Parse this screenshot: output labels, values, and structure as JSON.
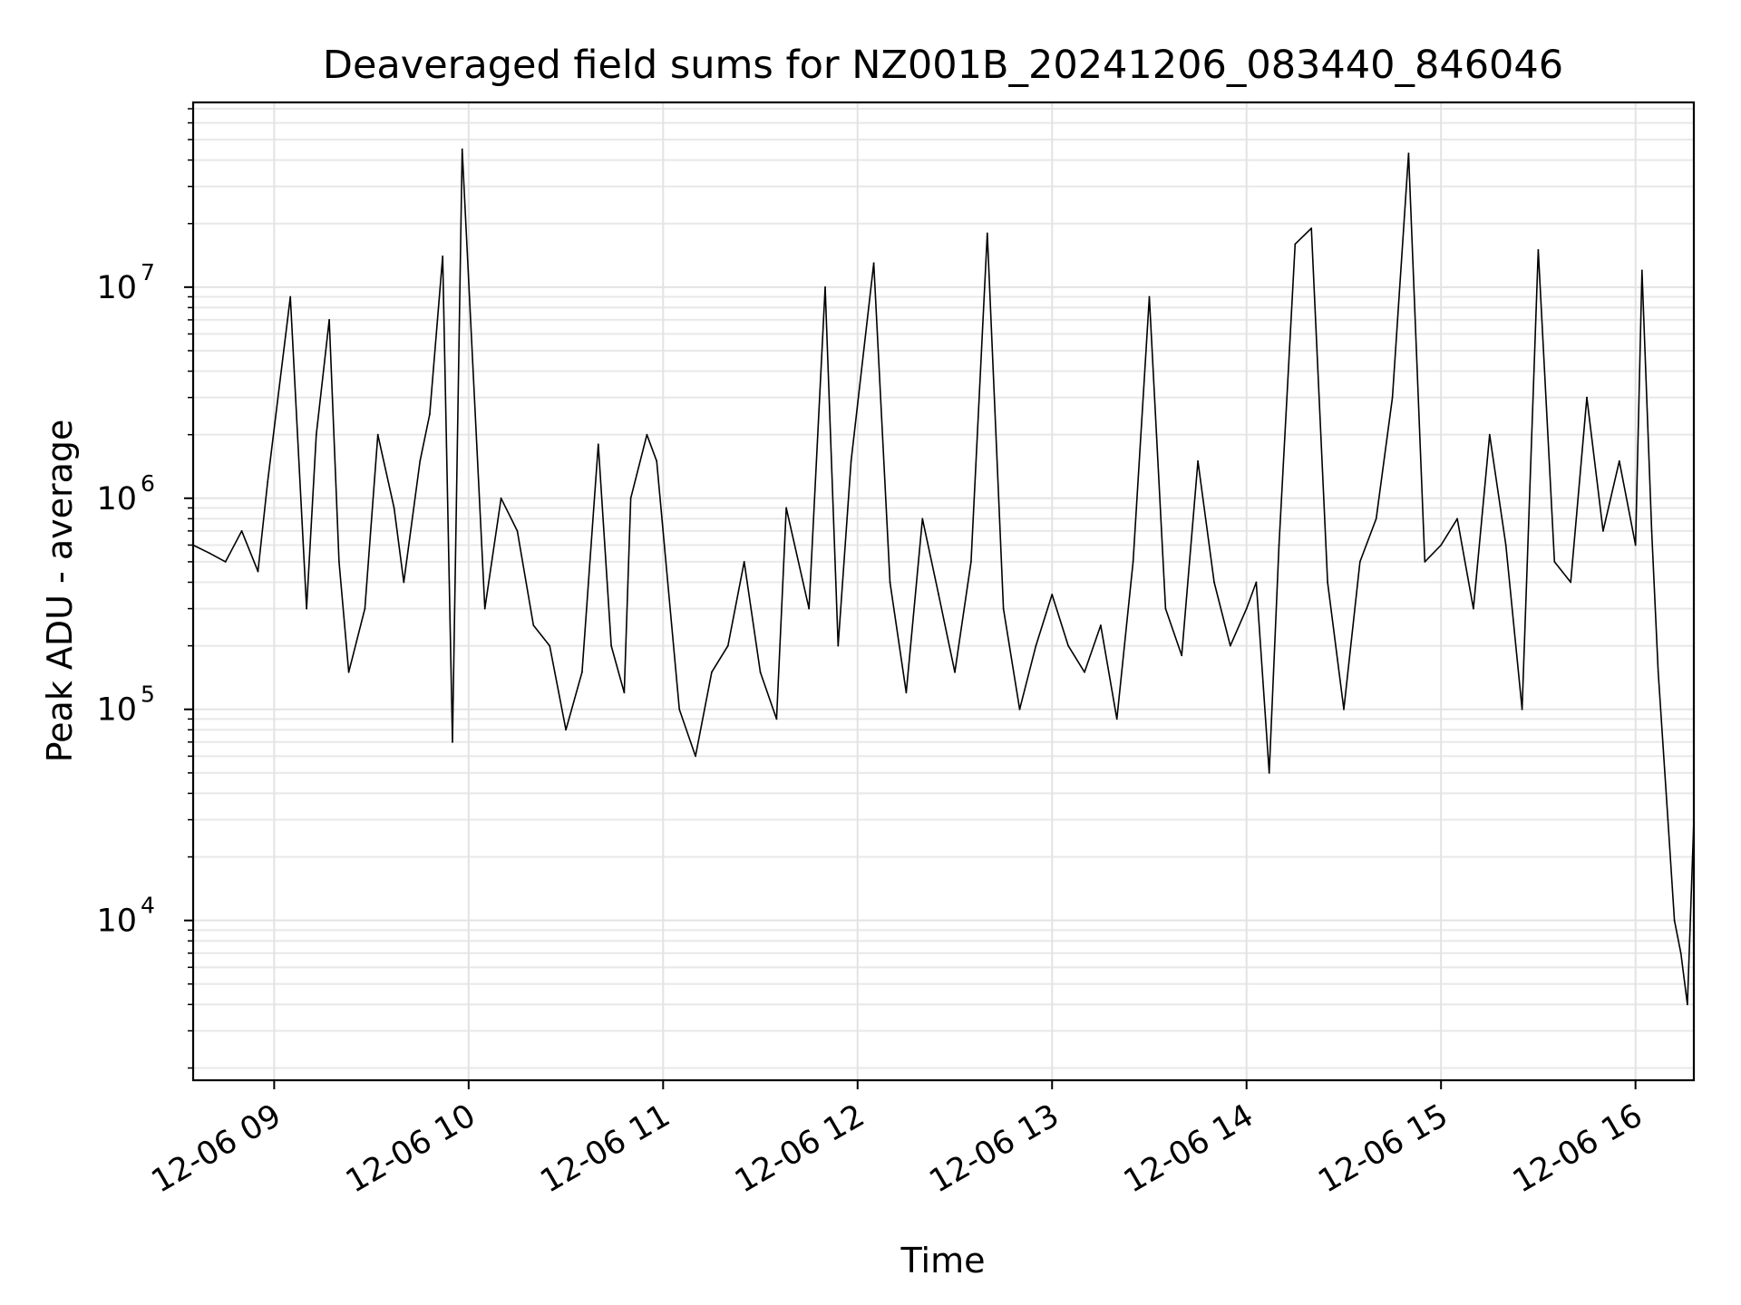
{
  "chart_data": {
    "type": "line",
    "title": "Deaveraged field sums for NZ001B_20241206_083440_846046",
    "xlabel": "Time",
    "ylabel": "Peak ADU - average",
    "x_scale": "time",
    "y_scale": "log",
    "xlim": [
      "12-06 08:35",
      "12-06 16:18"
    ],
    "ylim": [
      1750.0,
      75000000.0
    ],
    "grid": true,
    "grid_minor": true,
    "legend": "none",
    "line_color": "#000000",
    "x_tick_labels": [
      "12-06 09",
      "12-06 10",
      "12-06 11",
      "12-06 12",
      "12-06 13",
      "12-06 14",
      "12-06 15",
      "12-06 16"
    ],
    "x_tick_values": [
      "12-06 09:00",
      "12-06 10:00",
      "12-06 11:00",
      "12-06 12:00",
      "12-06 13:00",
      "12-06 14:00",
      "12-06 15:00",
      "12-06 16:00"
    ],
    "y_tick_labels": [
      {
        "base": "10",
        "exp": "4",
        "value": 10000.0
      },
      {
        "base": "10",
        "exp": "5",
        "value": 100000.0
      },
      {
        "base": "10",
        "exp": "6",
        "value": 1000000.0
      },
      {
        "base": "10",
        "exp": "7",
        "value": 10000000.0
      }
    ],
    "series": [
      {
        "x": [
          "12-06 08:35",
          "12-06 08:40",
          "12-06 08:45",
          "12-06 08:50",
          "12-06 08:55",
          "12-06 08:58",
          "12-06 09:05",
          "12-06 09:10",
          "12-06 09:13",
          "12-06 09:17",
          "12-06 09:20",
          "12-06 09:23",
          "12-06 09:28",
          "12-06 09:32",
          "12-06 09:37",
          "12-06 09:40",
          "12-06 09:45",
          "12-06 09:48",
          "12-06 09:52",
          "12-06 09:55",
          "12-06 09:58",
          "12-06 10:05",
          "12-06 10:10",
          "12-06 10:15",
          "12-06 10:20",
          "12-06 10:25",
          "12-06 10:30",
          "12-06 10:35",
          "12-06 10:40",
          "12-06 10:44",
          "12-06 10:48",
          "12-06 10:50",
          "12-06 10:55",
          "12-06 10:58",
          "12-06 11:05",
          "12-06 11:10",
          "12-06 11:15",
          "12-06 11:20",
          "12-06 11:25",
          "12-06 11:30",
          "12-06 11:35",
          "12-06 11:38",
          "12-06 11:45",
          "12-06 11:50",
          "12-06 11:54",
          "12-06 11:58",
          "12-06 12:05",
          "12-06 12:10",
          "12-06 12:15",
          "12-06 12:20",
          "12-06 12:25",
          "12-06 12:30",
          "12-06 12:35",
          "12-06 12:40",
          "12-06 12:45",
          "12-06 12:50",
          "12-06 12:55",
          "12-06 13:00",
          "12-06 13:05",
          "12-06 13:10",
          "12-06 13:15",
          "12-06 13:20",
          "12-06 13:25",
          "12-06 13:30",
          "12-06 13:35",
          "12-06 13:40",
          "12-06 13:45",
          "12-06 13:50",
          "12-06 13:55",
          "12-06 14:00",
          "12-06 14:03",
          "12-06 14:07",
          "12-06 14:10",
          "12-06 14:15",
          "12-06 14:20",
          "12-06 14:25",
          "12-06 14:30",
          "12-06 14:35",
          "12-06 14:40",
          "12-06 14:45",
          "12-06 14:50",
          "12-06 14:55",
          "12-06 15:00",
          "12-06 15:05",
          "12-06 15:10",
          "12-06 15:15",
          "12-06 15:20",
          "12-06 15:25",
          "12-06 15:30",
          "12-06 15:35",
          "12-06 15:40",
          "12-06 15:45",
          "12-06 15:50",
          "12-06 15:55",
          "12-06 16:00",
          "12-06 16:02",
          "12-06 16:05",
          "12-06 16:07",
          "12-06 16:10",
          "12-06 16:12",
          "12-06 16:14",
          "12-06 16:16",
          "12-06 16:18"
        ],
        "values": [
          600000,
          550000,
          500000,
          700000,
          450000,
          1200000,
          9000000,
          300000,
          2000000,
          7000000,
          500000,
          150000,
          300000,
          2000000,
          900000,
          400000,
          1500000,
          2500000,
          14000000,
          70000,
          45000000,
          300000,
          1000000,
          700000,
          250000,
          200000,
          80000,
          150000,
          1800000,
          200000,
          120000,
          1000000,
          2000000,
          1500000,
          100000,
          60000,
          150000,
          200000,
          500000,
          150000,
          90000,
          900000,
          300000,
          10000000,
          200000,
          1500000,
          13000000,
          400000,
          120000,
          800000,
          350000,
          150000,
          500000,
          18000000,
          300000,
          100000,
          200000,
          350000,
          200000,
          150000,
          250000,
          90000,
          500000,
          9000000,
          300000,
          180000,
          1500000,
          400000,
          200000,
          300000,
          400000,
          50000,
          600000,
          16000000,
          19000000,
          400000,
          100000,
          500000,
          800000,
          3000000,
          43000000,
          500000,
          600000,
          800000,
          300000,
          2000000,
          600000,
          100000,
          15000000,
          500000,
          400000,
          3000000,
          700000,
          1500000,
          600000,
          12000000,
          700000,
          150000,
          30000,
          10000,
          7000,
          4000,
          30000
        ]
      }
    ]
  }
}
